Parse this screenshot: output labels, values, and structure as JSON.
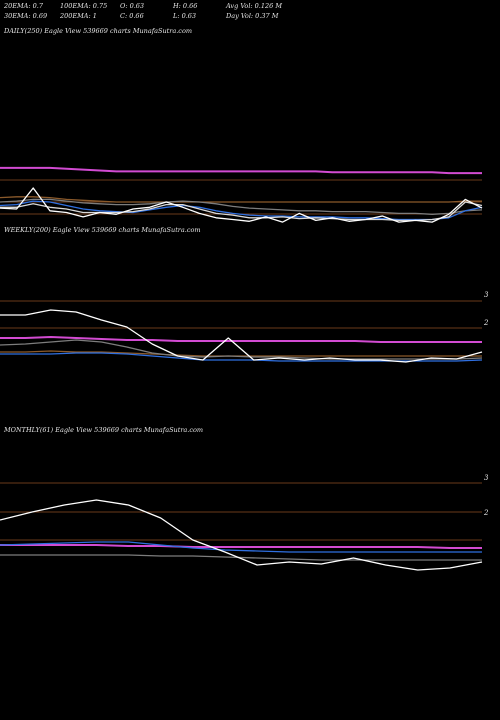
{
  "header": {
    "row1": [
      "20EMA: 0.7",
      "100EMA: 0.75",
      "O: 0.63",
      "H: 0.66",
      "Avg Vol: 0.126  M"
    ],
    "row2": [
      "30EMA: 0.69",
      "200EMA: 1",
      "C: 0.66",
      "L: 0.63",
      "Day Vol: 0.37  M"
    ]
  },
  "panels": [
    {
      "title": "DAILY(250) Eagle   View  539669 charts MunafaSutra.com"
    },
    {
      "title": "WEEKLY(200) Eagle   View  539669 charts MunafaSutra.com"
    },
    {
      "title": "MONTHLY(61) Eagle   View  539669 charts MunafaSutra.com"
    }
  ],
  "chart_data": [
    {
      "type": "line",
      "title": "DAILY(250) Eagle   View  539669 charts MunafaSutra.com",
      "y_ticks": [],
      "series": [
        {
          "color": "#d24bd2",
          "values": [
            1.31,
            1.31,
            1.31,
            1.31,
            1.3,
            1.29,
            1.28,
            1.27,
            1.27,
            1.27,
            1.27,
            1.27,
            1.27,
            1.27,
            1.27,
            1.27,
            1.27,
            1.27,
            1.27,
            1.27,
            1.26,
            1.26,
            1.26,
            1.26,
            1.26,
            1.26,
            1.26,
            1.25,
            1.25,
            1.25
          ]
        },
        {
          "color": "#8b5a2b",
          "values": [
            0.97,
            0.98,
            0.98,
            0.97,
            0.95,
            0.94,
            0.93,
            0.92,
            0.92,
            0.92,
            0.92,
            0.92,
            0.92,
            0.92,
            0.92,
            0.92,
            0.92,
            0.92,
            0.92,
            0.92,
            0.92,
            0.92,
            0.92,
            0.92,
            0.92,
            0.92,
            0.92,
            0.92,
            0.93,
            0.93
          ]
        },
        {
          "color": "#7d7d7d",
          "values": [
            0.92,
            0.93,
            0.95,
            0.95,
            0.93,
            0.91,
            0.9,
            0.89,
            0.89,
            0.9,
            0.92,
            0.93,
            0.92,
            0.9,
            0.87,
            0.85,
            0.84,
            0.83,
            0.82,
            0.82,
            0.81,
            0.81,
            0.81,
            0.8,
            0.79,
            0.79,
            0.78,
            0.79,
            0.82,
            0.83
          ]
        },
        {
          "color": "#2f6fe0",
          "values": [
            0.88,
            0.89,
            0.93,
            0.92,
            0.88,
            0.84,
            0.82,
            0.81,
            0.8,
            0.83,
            0.86,
            0.88,
            0.86,
            0.82,
            0.79,
            0.77,
            0.76,
            0.76,
            0.75,
            0.75,
            0.75,
            0.74,
            0.74,
            0.73,
            0.72,
            0.72,
            0.72,
            0.74,
            0.82,
            0.86
          ]
        },
        {
          "color": "#d8d8d8",
          "values": [
            0.86,
            0.86,
            0.9,
            0.86,
            0.84,
            0.8,
            0.8,
            0.8,
            0.81,
            0.84,
            0.89,
            0.89,
            0.84,
            0.79,
            0.77,
            0.74,
            0.74,
            0.75,
            0.73,
            0.74,
            0.73,
            0.72,
            0.72,
            0.72,
            0.71,
            0.71,
            0.72,
            0.75,
            0.92,
            0.88
          ]
        },
        {
          "color": "#ffffff",
          "values": [
            0.85,
            0.84,
            1.08,
            0.82,
            0.8,
            0.75,
            0.8,
            0.78,
            0.84,
            0.86,
            0.92,
            0.86,
            0.79,
            0.74,
            0.72,
            0.7,
            0.75,
            0.69,
            0.79,
            0.71,
            0.74,
            0.7,
            0.72,
            0.76,
            0.69,
            0.71,
            0.69,
            0.78,
            0.95,
            0.85
          ]
        }
      ]
    },
    {
      "type": "line",
      "title": "WEEKLY(200) Eagle   View  539669 charts MunafaSutra.com",
      "y_ticks": [
        "3",
        "2"
      ],
      "series": [
        {
          "color": "#d24bd2",
          "values": [
            1.82,
            1.82,
            1.83,
            1.82,
            1.81,
            1.8,
            1.8,
            1.79,
            1.79,
            1.79,
            1.79,
            1.79,
            1.79,
            1.79,
            1.79,
            1.78,
            1.78,
            1.78,
            1.78,
            1.78
          ]
        },
        {
          "color": "#8b5a2b",
          "values": [
            1.68,
            1.68,
            1.69,
            1.68,
            1.68,
            1.67,
            1.66,
            1.65,
            1.64,
            1.64,
            1.64,
            1.64,
            1.64,
            1.64,
            1.64,
            1.64,
            1.64,
            1.64,
            1.64,
            1.64
          ]
        },
        {
          "color": "#7d7d7d",
          "values": [
            1.75,
            1.76,
            1.78,
            1.8,
            1.78,
            1.73,
            1.67,
            1.64,
            1.63,
            1.64,
            1.63,
            1.63,
            1.62,
            1.61,
            1.61,
            1.61,
            1.61,
            1.61,
            1.61,
            1.62
          ]
        },
        {
          "color": "#2f6fe0",
          "values": [
            1.66,
            1.66,
            1.66,
            1.67,
            1.67,
            1.66,
            1.64,
            1.62,
            1.6,
            1.6,
            1.6,
            1.59,
            1.59,
            1.59,
            1.59,
            1.59,
            1.59,
            1.59,
            1.59,
            1.6
          ]
        },
        {
          "color": "#ffffff",
          "values": [
            2.05,
            2.05,
            2.1,
            2.08,
            2.0,
            1.93,
            1.76,
            1.64,
            1.6,
            1.82,
            1.6,
            1.62,
            1.6,
            1.62,
            1.6,
            1.6,
            1.58,
            1.62,
            1.61,
            1.68
          ]
        }
      ]
    },
    {
      "type": "line",
      "title": "MONTHLY(61) Eagle   View  539669 charts MunafaSutra.com",
      "y_ticks": [
        "3",
        "2"
      ],
      "series": [
        {
          "color": "#d24bd2",
          "values": [
            1.55,
            1.55,
            1.55,
            1.55,
            1.54,
            1.54,
            1.53,
            1.53,
            1.53,
            1.53,
            1.53,
            1.53,
            1.53,
            1.53,
            1.52,
            1.52
          ]
        },
        {
          "color": "#7d7d7d",
          "values": [
            1.45,
            1.45,
            1.45,
            1.45,
            1.45,
            1.44,
            1.44,
            1.43,
            1.42,
            1.41,
            1.4,
            1.4,
            1.4,
            1.4,
            1.4,
            1.4
          ]
        },
        {
          "color": "#2f6fe0",
          "values": [
            1.55,
            1.56,
            1.57,
            1.58,
            1.58,
            1.55,
            1.52,
            1.5,
            1.49,
            1.48,
            1.48,
            1.48,
            1.48,
            1.48,
            1.48,
            1.48
          ]
        },
        {
          "color": "#ffffff",
          "values": [
            1.8,
            1.88,
            1.95,
            2.0,
            1.95,
            1.82,
            1.6,
            1.48,
            1.35,
            1.38,
            1.36,
            1.42,
            1.35,
            1.3,
            1.32,
            1.38
          ]
        }
      ]
    }
  ]
}
